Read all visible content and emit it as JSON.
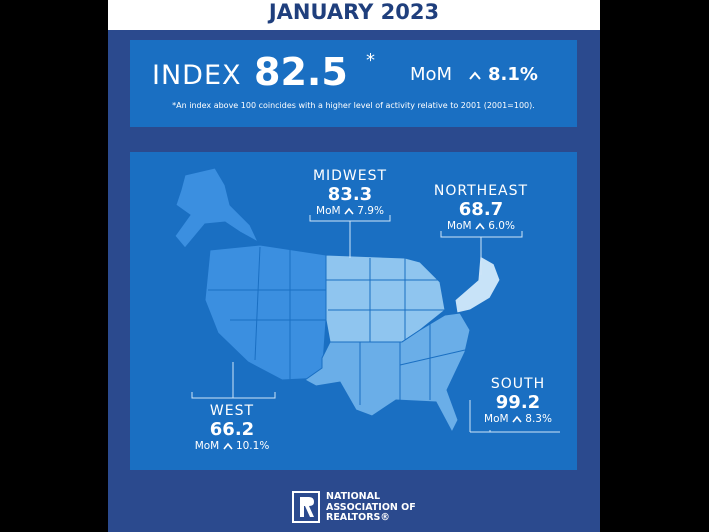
{
  "header": {
    "title": "JANUARY 2023"
  },
  "index": {
    "label": "INDEX",
    "value": 82.5,
    "asterisk": "*",
    "mom_label": "MoM",
    "mom_change": "8.1%",
    "footnote": "*An index above 100 coincides with a higher level of activity relative to 2001 (2001=100)."
  },
  "regions": [
    {
      "name": "MIDWEST",
      "value": 83.3,
      "mom_label": "MoM",
      "mom_change": "7.9%"
    },
    {
      "name": "NORTHEAST",
      "value": 68.7,
      "mom_label": "MoM",
      "mom_change": "6.0%"
    },
    {
      "name": "WEST",
      "value": 66.2,
      "mom_label": "MoM",
      "mom_change": "10.1%"
    },
    {
      "name": "SOUTH",
      "value": 99.2,
      "mom_label": "MoM",
      "mom_change": "8.3%"
    }
  ],
  "logo": {
    "line1": "NATIONAL",
    "line2": "ASSOCIATION OF",
    "line3": "REALTORS®"
  }
}
